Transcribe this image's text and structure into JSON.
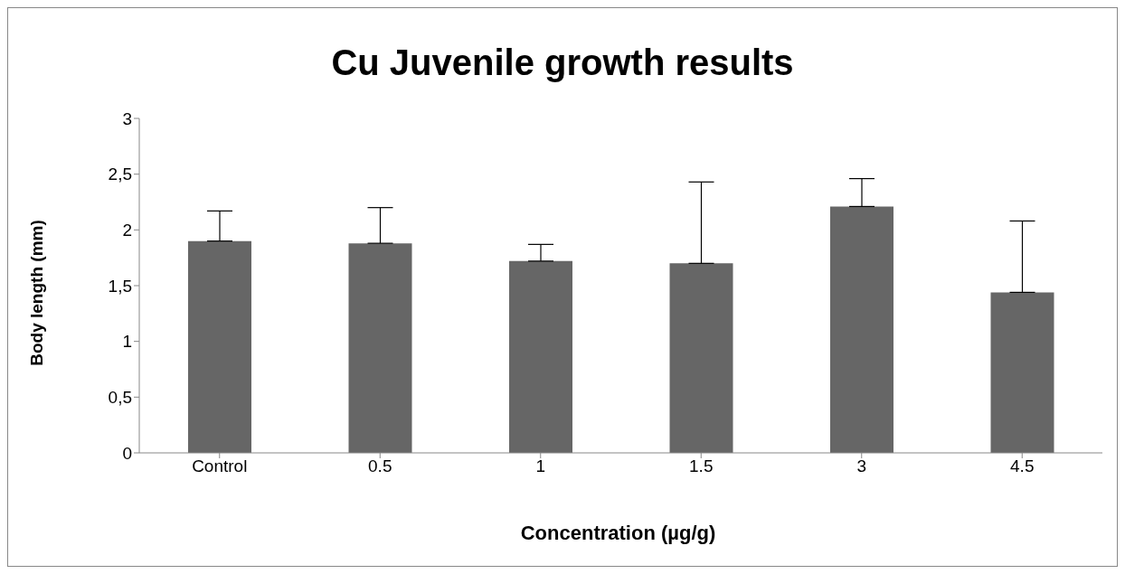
{
  "chart_data": {
    "type": "bar",
    "title": "Cu Juvenile growth results",
    "xlabel": "Concentration (µg/g)",
    "ylabel": "Body length (mm)",
    "categories": [
      "Control",
      "0.5",
      "1",
      "1.5",
      "3",
      "4.5"
    ],
    "values": [
      1.9,
      1.88,
      1.72,
      1.7,
      2.21,
      1.44
    ],
    "errors": [
      [
        1.9,
        2.17
      ],
      [
        1.88,
        2.2
      ],
      [
        1.72,
        1.87
      ],
      [
        1.7,
        2.43
      ],
      [
        2.21,
        2.46
      ],
      [
        1.44,
        2.08
      ]
    ],
    "color": "#666666",
    "ylim": [
      0,
      3
    ],
    "yticks": [
      0,
      {
        "value": 0.5,
        "label": "0,5"
      },
      1,
      {
        "value": 1.5,
        "label": "1,5"
      },
      2,
      {
        "value": 2.5,
        "label": "2,5"
      },
      3
    ],
    "grid": false,
    "legend": false
  }
}
